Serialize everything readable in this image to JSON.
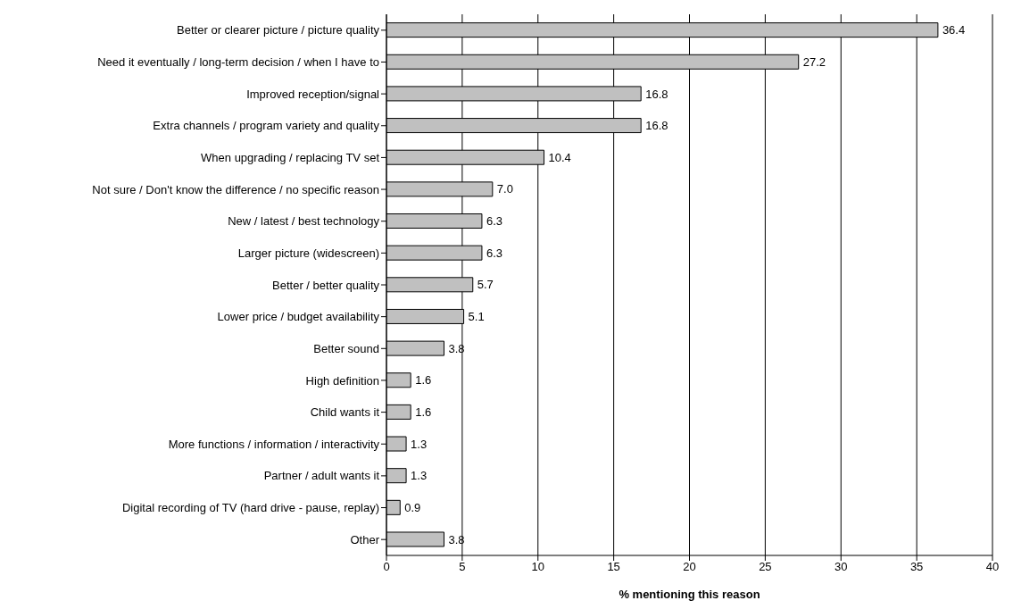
{
  "chart_data": {
    "type": "bar",
    "orientation": "horizontal",
    "categories": [
      "Better or clearer picture / picture quality",
      "Need it eventually / long-term decision / when I have to",
      "Improved reception/signal",
      "Extra channels  / program variety and quality",
      "When upgrading / replacing TV set",
      "Not sure / Don't know the difference / no specific reason",
      "New /  latest / best technology",
      "Larger picture (widescreen)",
      "Better / better quality",
      "Lower price / budget availability",
      "Better sound",
      "High definition",
      "Child wants it",
      "More functions / information / interactivity",
      "Partner / adult wants it",
      "Digital recording of TV (hard drive - pause, replay)",
      "Other"
    ],
    "values": [
      36.4,
      27.2,
      16.8,
      16.8,
      10.4,
      7.0,
      6.3,
      6.3,
      5.7,
      5.1,
      3.8,
      1.6,
      1.6,
      1.3,
      1.3,
      0.9,
      3.8
    ],
    "value_labels": [
      "36.4",
      "27.2",
      "16.8",
      "16.8",
      "10.4",
      "7.0",
      "6.3",
      "6.3",
      "5.7",
      "5.1",
      "3.8",
      "1.6",
      "1.6",
      "1.3",
      "1.3",
      "0.9",
      "3.8"
    ],
    "color": "#c0c0c0",
    "xlim": [
      0,
      40
    ],
    "xticks": [
      0,
      5,
      10,
      15,
      20,
      25,
      30,
      35,
      40
    ],
    "xlabel": "% mentioning this reason",
    "grid": "x"
  }
}
